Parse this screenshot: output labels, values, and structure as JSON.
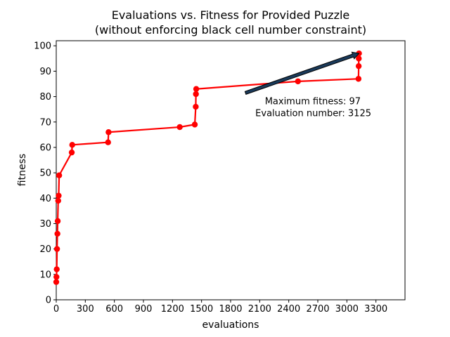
{
  "chart_data": {
    "type": "line",
    "title": "Evaluations vs. Fitness for Provided Puzzle",
    "subtitle": "(without enforcing black cell number constraint)",
    "xlabel": "evaluations",
    "ylabel": "fitness",
    "xlim": [
      0,
      3600
    ],
    "ylim": [
      0,
      102
    ],
    "xticks": [
      0,
      300,
      600,
      900,
      1200,
      1500,
      1800,
      2100,
      2400,
      2700,
      3000,
      3300
    ],
    "yticks": [
      0,
      10,
      20,
      30,
      40,
      50,
      60,
      70,
      80,
      90,
      100
    ],
    "grid": false,
    "series": [
      {
        "color": "#ff0000",
        "marker": "circle",
        "x": [
          0,
          2,
          5,
          8,
          12,
          15,
          20,
          25,
          30,
          160,
          165,
          535,
          540,
          1275,
          1430,
          1440,
          1442,
          1445,
          2495,
          3120,
          3122,
          3123,
          3125
        ],
        "y": [
          7,
          9,
          12,
          20,
          26,
          31,
          39,
          41,
          49,
          58,
          61,
          62,
          66,
          68,
          69,
          76,
          81,
          83,
          86,
          87,
          92,
          95,
          97
        ]
      }
    ],
    "annotation": {
      "line1": "Maximum fitness: 97",
      "line2": "Evaluation number: 3125",
      "target": [
        3125,
        97
      ],
      "text_anchor_data": [
        2650,
        82
      ]
    }
  }
}
